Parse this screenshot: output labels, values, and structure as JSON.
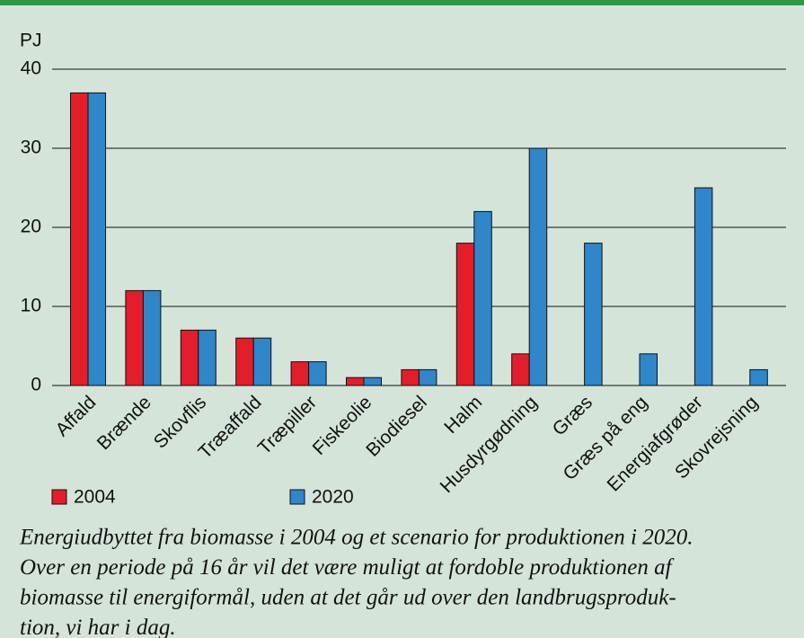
{
  "chart_data": {
    "type": "bar",
    "y_label": "PJ",
    "categories": [
      "Affald",
      "Brænde",
      "Skovflis",
      "Træaffald",
      "Træpiller",
      "Fiskeolie",
      "Biodiesel",
      "Halm",
      "Husdyrgødning",
      "Græs",
      "Græs på eng",
      "Energiafgrøder",
      "Skovrejsning"
    ],
    "series": [
      {
        "name": "2004",
        "color": "#e31e2a",
        "values": [
          37,
          12,
          7,
          6,
          3,
          1,
          2,
          18,
          4,
          null,
          null,
          null,
          null
        ]
      },
      {
        "name": "2020",
        "color": "#2f86c8",
        "values": [
          37,
          12,
          7,
          6,
          3,
          1,
          2,
          22,
          30,
          18,
          4,
          25,
          2
        ]
      }
    ],
    "ylim": [
      0,
      40
    ],
    "yticks": [
      0,
      10,
      20,
      30,
      40
    ],
    "grid": true
  },
  "caption": [
    "Energiudbyttet fra biomasse i 2004 og et scenario for produktionen i 2020.",
    "Over en periode på 16 år vil det være muligt at fordoble produktionen af",
    "biomasse til energiformål, uden at det går ud over den landbrugsproduk-",
    "tion, vi har i dag."
  ]
}
